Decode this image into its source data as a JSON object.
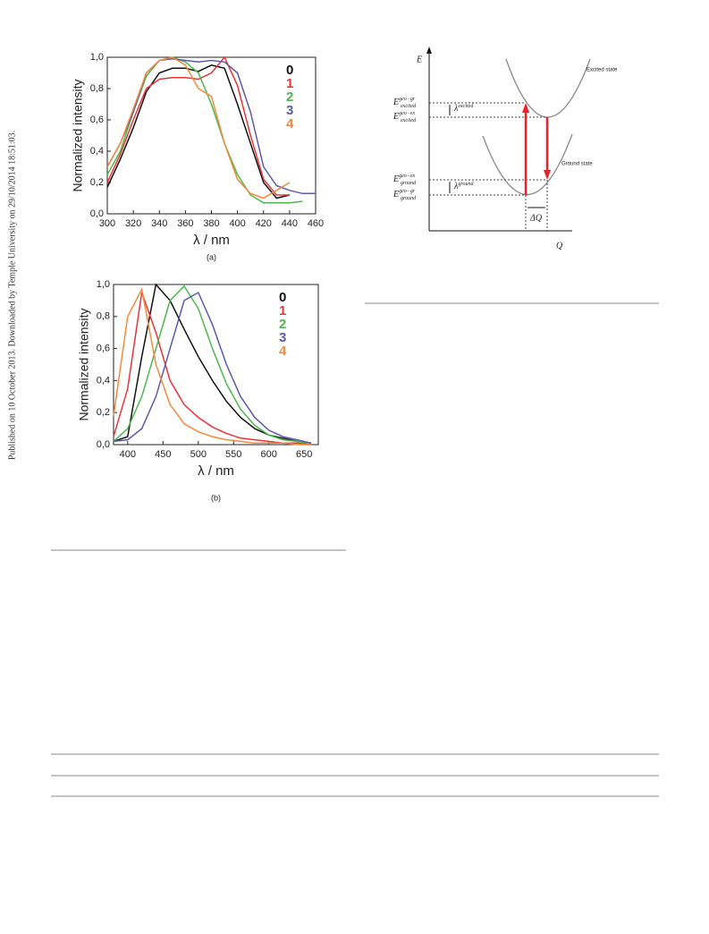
{
  "side_note": "Published on 10 October 2013. Downloaded by Temple University on 29/10/2014 18:51:03.",
  "chart_data": [
    {
      "type": "line",
      "caption": "(a)",
      "x_label": "λ / nm",
      "y_label": "Normalized intensity",
      "x": [
        300,
        310,
        320,
        330,
        340,
        350,
        360,
        370,
        380,
        390,
        400,
        410,
        420,
        430,
        440,
        450,
        460
      ],
      "series": [
        {
          "name": "0",
          "color": "#111111",
          "values": [
            0.17,
            0.35,
            0.55,
            0.78,
            0.9,
            0.93,
            0.93,
            0.91,
            0.95,
            0.93,
            0.7,
            0.45,
            0.2,
            0.1,
            0.12,
            null,
            null
          ]
        },
        {
          "name": "1",
          "color": "#e8333a",
          "values": [
            0.2,
            0.38,
            0.6,
            0.8,
            0.86,
            0.87,
            0.87,
            0.86,
            0.9,
            1.0,
            0.82,
            0.5,
            0.22,
            0.12,
            0.12,
            null,
            null
          ]
        },
        {
          "name": "2",
          "color": "#4cb84c",
          "values": [
            0.25,
            0.4,
            0.65,
            0.88,
            0.98,
            1.0,
            0.97,
            0.9,
            0.7,
            0.45,
            0.25,
            0.12,
            0.07,
            0.07,
            0.07,
            0.08,
            null
          ]
        },
        {
          "name": "3",
          "color": "#5a5aaa",
          "values": [
            0.3,
            0.45,
            0.65,
            0.9,
            0.98,
            0.99,
            0.98,
            0.97,
            0.98,
            0.97,
            0.9,
            0.65,
            0.3,
            0.18,
            0.15,
            0.13,
            0.13
          ]
        },
        {
          "name": "4",
          "color": "#f08a3c",
          "values": [
            0.3,
            0.45,
            0.67,
            0.9,
            0.98,
            1.0,
            0.95,
            0.8,
            0.75,
            0.45,
            0.22,
            0.13,
            0.1,
            0.15,
            0.2,
            null,
            null
          ]
        }
      ],
      "xlim": [
        300,
        460
      ],
      "xticks": [
        300,
        320,
        340,
        360,
        380,
        400,
        420,
        440,
        460
      ],
      "ylim": [
        0,
        1.0
      ],
      "yticks": [
        {
          "value": 0,
          "label": "0,0"
        },
        {
          "value": 0.2,
          "label": "0,2"
        },
        {
          "value": 0.4,
          "label": "0,4"
        },
        {
          "value": 0.6,
          "label": "0,6"
        },
        {
          "value": 0.8,
          "label": "0,8"
        },
        {
          "value": 1.0,
          "label": "1,0"
        }
      ]
    },
    {
      "type": "line",
      "caption": "(b)",
      "x_label": "λ / nm",
      "y_label": "Normalized intensity",
      "x": [
        380,
        400,
        420,
        440,
        460,
        480,
        500,
        520,
        540,
        560,
        580,
        600,
        620,
        640,
        660
      ],
      "series": [
        {
          "name": "0",
          "color": "#111111",
          "values": [
            0.02,
            0.05,
            0.55,
            1.0,
            0.9,
            0.72,
            0.55,
            0.4,
            0.27,
            0.17,
            0.1,
            0.06,
            0.04,
            0.02,
            0.01
          ]
        },
        {
          "name": "1",
          "color": "#e8333a",
          "values": [
            0.05,
            0.35,
            0.95,
            0.7,
            0.4,
            0.25,
            0.17,
            0.11,
            0.07,
            0.04,
            0.03,
            0.02,
            0.01,
            0.01,
            0.0
          ]
        },
        {
          "name": "2",
          "color": "#4cb84c",
          "values": [
            0.02,
            0.1,
            0.3,
            0.6,
            0.9,
            0.99,
            0.85,
            0.6,
            0.38,
            0.22,
            0.12,
            0.06,
            0.03,
            0.02,
            0.01
          ]
        },
        {
          "name": "3",
          "color": "#5a5aaa",
          "values": [
            0.02,
            0.03,
            0.1,
            0.3,
            0.6,
            0.9,
            0.95,
            0.75,
            0.5,
            0.3,
            0.17,
            0.09,
            0.05,
            0.03,
            0.01
          ]
        },
        {
          "name": "4",
          "color": "#f08a3c",
          "values": [
            0.18,
            0.8,
            0.97,
            0.5,
            0.25,
            0.13,
            0.08,
            0.05,
            0.03,
            0.02,
            0.01,
            0.01,
            0.01,
            0.0,
            0.0
          ]
        }
      ],
      "xlim": [
        380,
        670
      ],
      "xticks": [
        400,
        450,
        500,
        550,
        600,
        650
      ],
      "ylim": [
        0,
        1.0
      ],
      "yticks": [
        {
          "value": 0,
          "label": "0,0"
        },
        {
          "value": 0.2,
          "label": "0,2"
        },
        {
          "value": 0.4,
          "label": "0,4"
        },
        {
          "value": 0.6,
          "label": "0,6"
        },
        {
          "value": 0.8,
          "label": "0,8"
        },
        {
          "value": 1.0,
          "label": "1,0"
        }
      ]
    }
  ],
  "diagram": {
    "y_axis": "E",
    "x_axis": "Q",
    "upper_curve": "Excited state",
    "lower_curve": "Ground state",
    "shift": "ΔQ",
    "lambda_excited": {
      "symbol": "λ",
      "sup": "excited"
    },
    "lambda_ground": {
      "symbol": "λ",
      "sup": "ground"
    },
    "levels": [
      {
        "symbol": "E",
        "sup": "geo−gr",
        "sub": "excited"
      },
      {
        "symbol": "E",
        "sup": "geo−ex",
        "sub": "excited"
      },
      {
        "symbol": "E",
        "sup": "geo−ex",
        "sub": "ground"
      },
      {
        "symbol": "E",
        "sup": "geo−gr",
        "sub": "ground"
      }
    ]
  }
}
